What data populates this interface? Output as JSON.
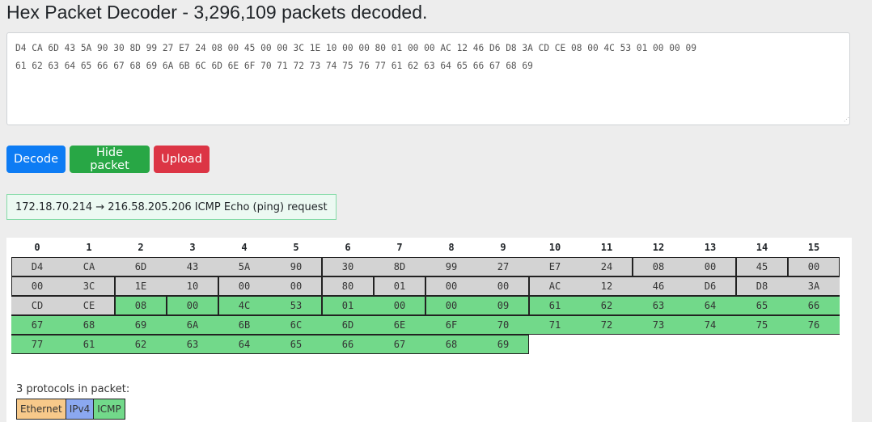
{
  "title": "Hex Packet Decoder - 3,296,109 packets decoded.",
  "hex_input": "D4 CA 6D 43 5A 90 30 8D 99 27 E7 24 08 00 45 00 00 3C 1E 10 00 00 80 01 00 00 AC 12 46 D6 D8 3A CD CE 08 00 4C 53 01 00 00 09\n61 62 63 64 65 66 67 68 69 6A 6B 6C 6D 6E 6F 70 71 72 73 74 75 76 77 61 62 63 64 65 66 67 68 69",
  "buttons": {
    "decode": "Decode",
    "hide": "Hide packet",
    "upload": "Upload"
  },
  "summary": "172.18.70.214 → 216.58.205.206 ICMP Echo (ping) request",
  "columns": [
    "0",
    "1",
    "2",
    "3",
    "4",
    "5",
    "6",
    "7",
    "8",
    "9",
    "10",
    "11",
    "12",
    "13",
    "14",
    "15"
  ],
  "bytes": [
    "D4",
    "CA",
    "6D",
    "43",
    "5A",
    "90",
    "30",
    "8D",
    "99",
    "27",
    "E7",
    "24",
    "08",
    "00",
    "45",
    "00",
    "00",
    "3C",
    "1E",
    "10",
    "00",
    "00",
    "80",
    "01",
    "00",
    "00",
    "AC",
    "12",
    "46",
    "D6",
    "D8",
    "3A",
    "CD",
    "CE",
    "08",
    "00",
    "4C",
    "53",
    "01",
    "00",
    "00",
    "09",
    "61",
    "62",
    "63",
    "64",
    "65",
    "66",
    "67",
    "68",
    "69",
    "6A",
    "6B",
    "6C",
    "6D",
    "6E",
    "6F",
    "70",
    "71",
    "72",
    "73",
    "74",
    "75",
    "76",
    "77",
    "61",
    "62",
    "63",
    "64",
    "65",
    "66",
    "67",
    "68",
    "69"
  ],
  "protocols_title": "3 protocols in packet:",
  "protocols": [
    {
      "name": "Ethernet",
      "color": "#f7c98a"
    },
    {
      "name": "IPv4",
      "color": "#8ba8f0"
    },
    {
      "name": "ICMP",
      "color": "#72d98a"
    }
  ],
  "colors": {
    "ethernet": "#d3d3d3",
    "ipv4": "#d3d3d3",
    "icmp": "#72d98a"
  }
}
